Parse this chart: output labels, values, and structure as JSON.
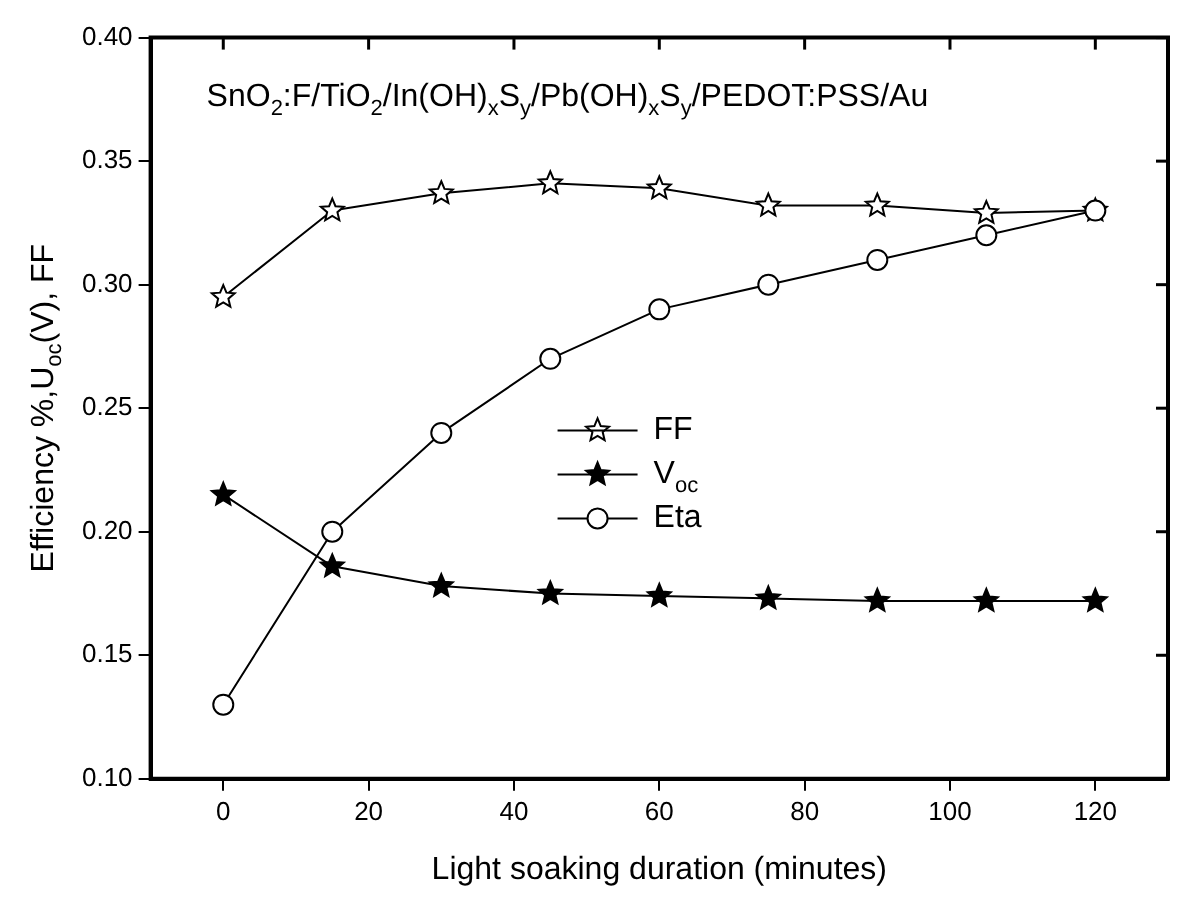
{
  "chart_data": {
    "type": "line",
    "title": "SnO$_{2}$:F/TiO$_{2}$/In(OH)$_{x}$S$_{y}$/Pb(OH)$_{x}$S$_{y}$/PEDOT:PSS/Au",
    "xlabel": "Light soaking duration (minutes)",
    "ylabel": "Efficiency %,U$_{oc}$(V), FF",
    "x": [
      0,
      15,
      30,
      45,
      60,
      75,
      90,
      105,
      120
    ],
    "series": [
      {
        "name": "FF",
        "color": "#000000",
        "marker": "star",
        "values": [
          0.295,
          0.33,
          0.337,
          0.341,
          0.339,
          0.332,
          0.332,
          0.329,
          0.33
        ]
      },
      {
        "name": "V$_{oc}$",
        "color": "#000000",
        "marker": "star",
        "values": [
          0.215,
          0.186,
          0.178,
          0.175,
          0.174,
          0.173,
          0.172,
          0.172,
          0.172
        ]
      },
      {
        "name": "Eta",
        "color": "#000000",
        "marker": "circle",
        "values": [
          0.13,
          0.2,
          0.24,
          0.27,
          0.29,
          0.3,
          0.31,
          0.32,
          0.33
        ]
      }
    ],
    "xlim": [
      -10,
      130
    ],
    "xticks": [
      0,
      20,
      40,
      60,
      80,
      100,
      120
    ],
    "ylim": [
      0.1,
      0.4
    ],
    "yticks": [
      {
        "value": 0.1,
        "label": "0.10"
      },
      {
        "value": 0.15,
        "label": "0.15"
      },
      {
        "value": 0.2,
        "label": "0.20"
      },
      {
        "value": 0.25,
        "label": "0.25"
      },
      {
        "value": 0.3,
        "label": "0.30"
      },
      {
        "value": 0.35,
        "label": "0.35"
      },
      {
        "value": 0.4,
        "label": "0.40"
      }
    ],
    "grid": false,
    "legend": "center",
    "line_style": "solid"
  }
}
